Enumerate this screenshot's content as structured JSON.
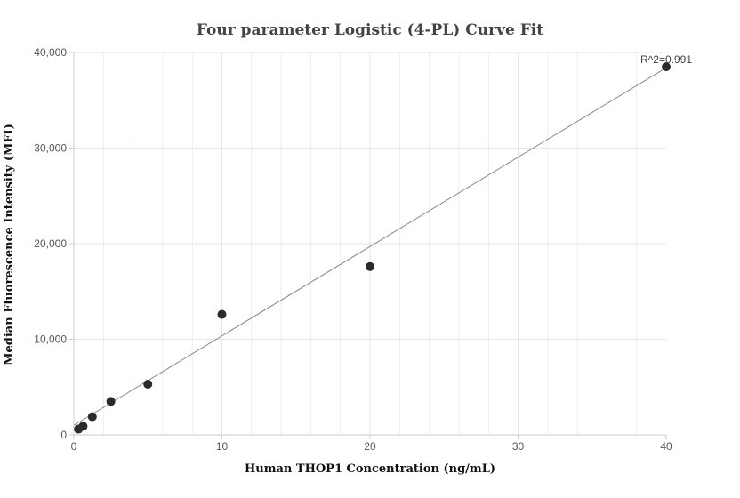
{
  "chart_data": {
    "type": "scatter",
    "title": "Four parameter Logistic (4-PL) Curve Fit",
    "xlabel": "Human THOP1 Concentration (ng/mL)",
    "ylabel": "Median Fluorescence Intensity (MFI)",
    "xlim": [
      0,
      40
    ],
    "ylim": [
      0,
      40000
    ],
    "x_ticks": [
      0,
      10,
      20,
      30,
      40
    ],
    "y_ticks": [
      0,
      10000,
      20000,
      30000,
      40000
    ],
    "x_tick_labels": [
      "0",
      "10",
      "20",
      "30",
      "40"
    ],
    "y_tick_labels": [
      "0",
      "10,000",
      "20,000",
      "30,000",
      "40,000"
    ],
    "grid": true,
    "series": [
      {
        "x": [
          0.3125,
          0.625,
          1.25,
          2.5,
          5,
          10,
          20,
          40
        ],
        "y": [
          600,
          900,
          1900,
          3500,
          5300,
          12600,
          17600,
          38500
        ]
      }
    ],
    "fit_line": {
      "x": [
        0,
        40
      ],
      "y": [
        1000,
        38400
      ]
    },
    "annotation": "R^2=0.991",
    "colors": {
      "points": "#2b2b2b",
      "fit_line": "#888888",
      "grid": "#e6e6ee",
      "axis": "#cccccc"
    }
  }
}
